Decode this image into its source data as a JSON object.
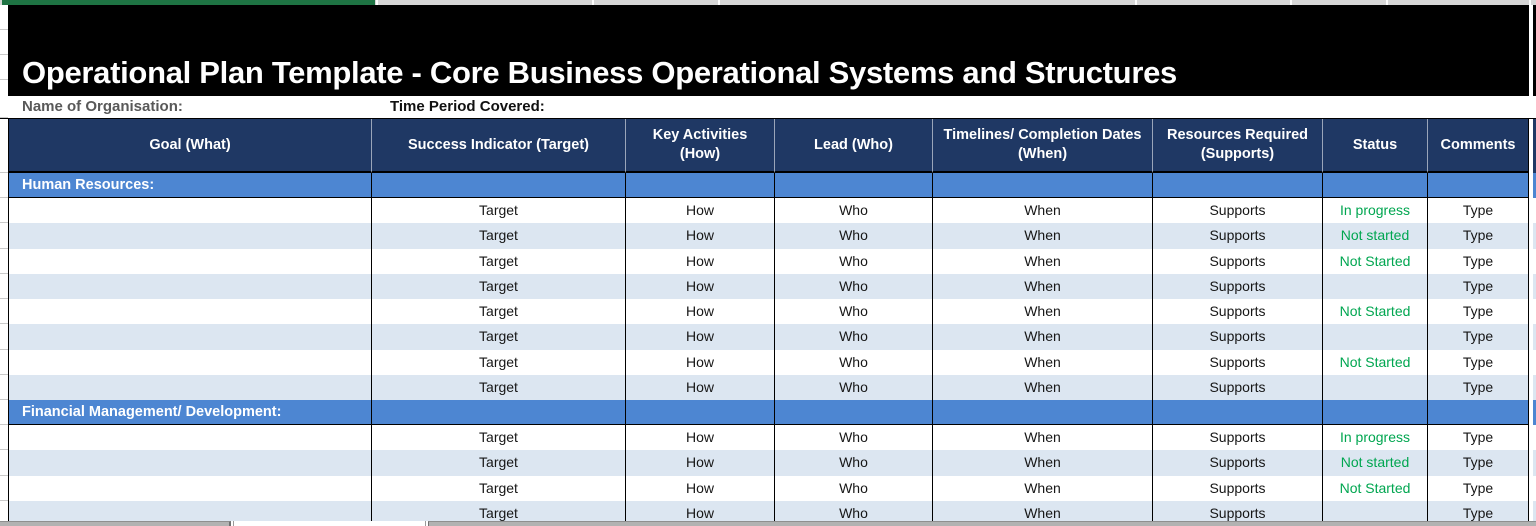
{
  "title": "Operational Plan Template - Core Business Operational Systems and Structures",
  "meta": {
    "org_label": "Name of Organisation:",
    "period_label": "Time Period Covered:"
  },
  "table": {
    "columns": [
      "Goal (What)",
      "Success Indicator (Target)",
      "Key Activities (How)",
      "Lead (Who)",
      "Timelines/ Completion Dates (When)",
      "Resources Required (Supports)",
      "Status",
      "Comments"
    ],
    "sections": [
      {
        "name": "Human Resources:",
        "rows": [
          {
            "cells": [
              "",
              "Target",
              "How",
              "Who",
              "When",
              "Supports",
              "In progress",
              "Type"
            ]
          },
          {
            "cells": [
              "",
              "Target",
              "How",
              "Who",
              "When",
              "Supports",
              "Not started",
              "Type"
            ]
          },
          {
            "cells": [
              "",
              "Target",
              "How",
              "Who",
              "When",
              "Supports",
              "Not Started",
              "Type"
            ]
          },
          {
            "cells": [
              "",
              "Target",
              "How",
              "Who",
              "When",
              "Supports",
              "",
              "Type"
            ]
          },
          {
            "cells": [
              "",
              "Target",
              "How",
              "Who",
              "When",
              "Supports",
              "Not Started",
              "Type"
            ]
          },
          {
            "cells": [
              "",
              "Target",
              "How",
              "Who",
              "When",
              "Supports",
              "",
              "Type"
            ]
          },
          {
            "cells": [
              "",
              "Target",
              "How",
              "Who",
              "When",
              "Supports",
              "Not Started",
              "Type"
            ]
          },
          {
            "cells": [
              "",
              "Target",
              "How",
              "Who",
              "When",
              "Supports",
              "",
              "Type"
            ]
          }
        ]
      },
      {
        "name": "Financial Management/ Development:",
        "rows": [
          {
            "cells": [
              "",
              "Target",
              "How",
              "Who",
              "When",
              "Supports",
              "In progress",
              "Type"
            ]
          },
          {
            "cells": [
              "",
              "Target",
              "How",
              "Who",
              "When",
              "Supports",
              "Not started",
              "Type"
            ]
          },
          {
            "cells": [
              "",
              "Target",
              "How",
              "Who",
              "When",
              "Supports",
              "Not Started",
              "Type"
            ]
          },
          {
            "cells": [
              "",
              "Target",
              "How",
              "Who",
              "When",
              "Supports",
              "",
              "Type"
            ]
          }
        ]
      }
    ]
  },
  "colors": {
    "title_bg": "#000000",
    "header_bg": "#1F3864",
    "section_bg": "#4D86D2",
    "band_bg": "#DCE6F1",
    "status_green": "#00A650",
    "top_green": "#1E7343"
  }
}
